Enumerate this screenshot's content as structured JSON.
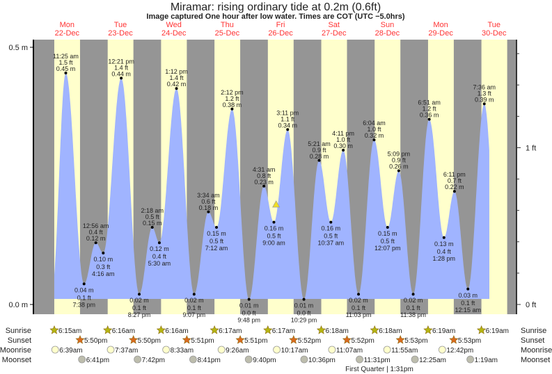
{
  "title": "Miramar: rising  ordinary tide at 0.2m (0.6ft)",
  "subtitle": "Image captured One hour after low water. Times are COT (UTC −5.0hrs)",
  "colors": {
    "night": "#959595",
    "day": "#ffffcc",
    "water": "#a0b4ff",
    "day_label": "#ff3333",
    "sunrise_star": "#b5b512",
    "sunset_star": "#d96a1e",
    "moonrise": "#ffffcc",
    "moonset": "#bdbdad",
    "current_marker": "#f0e020"
  },
  "days": [
    {
      "name": "Mon",
      "date": "22-Dec",
      "sunrise": "6:15am",
      "sunset": "5:50pm"
    },
    {
      "name": "Tue",
      "date": "23-Dec",
      "sunrise": "6:16am",
      "sunset": "5:50pm"
    },
    {
      "name": "Wed",
      "date": "24-Dec",
      "sunrise": "6:16am",
      "sunset": "5:51pm"
    },
    {
      "name": "Thu",
      "date": "25-Dec",
      "sunrise": "6:17am",
      "sunset": "5:51pm"
    },
    {
      "name": "Fri",
      "date": "26-Dec",
      "sunrise": "6:17am",
      "sunset": "5:52pm"
    },
    {
      "name": "Sat",
      "date": "27-Dec",
      "sunrise": "6:18am",
      "sunset": "5:52pm"
    },
    {
      "name": "Sun",
      "date": "28-Dec",
      "sunrise": "6:18am",
      "sunset": "5:53pm"
    },
    {
      "name": "Mon",
      "date": "29-Dec",
      "sunrise": "6:19am",
      "sunset": "5:53pm"
    },
    {
      "name": "Tue",
      "date": "30-Dec",
      "sunrise": "6:19am"
    }
  ],
  "chart_data": {
    "type": "area",
    "title": "Miramar: rising  ordinary tide at 0.2m (0.6ft)",
    "y_left": {
      "unit": "m",
      "ticks": [
        "0.0 m",
        "0.5 m"
      ],
      "range": [
        0,
        0.5
      ]
    },
    "y_right": {
      "unit": "ft",
      "ticks": [
        "0 ft",
        "1 ft"
      ]
    },
    "current_level_m": 0.2,
    "extremes": [
      {
        "day": 0,
        "time": "11:25 am",
        "type": "high",
        "m": "0.45 m",
        "ft": "1.5 ft"
      },
      {
        "day": 0,
        "time": "7:38 pm",
        "type": "low",
        "m": "0.04 m",
        "ft": "0.1 ft"
      },
      {
        "day": 1,
        "time": "12:56 am",
        "type": "high",
        "m": "0.12 m",
        "ft": "0.4 ft"
      },
      {
        "day": 1,
        "time": "4:16 am",
        "type": "low",
        "m": "0.10 m",
        "ft": "0.3 ft"
      },
      {
        "day": 1,
        "time": "12:21 pm",
        "type": "high",
        "m": "0.44 m",
        "ft": "1.4 ft"
      },
      {
        "day": 1,
        "time": "8:27 pm",
        "type": "low",
        "m": "0.02 m",
        "ft": "0.1 ft"
      },
      {
        "day": 2,
        "time": "2:18 am",
        "type": "high",
        "m": "0.15 m",
        "ft": "0.5 ft"
      },
      {
        "day": 2,
        "time": "5:30 am",
        "type": "low",
        "m": "0.12 m",
        "ft": "0.4 ft"
      },
      {
        "day": 2,
        "time": "1:12 pm",
        "type": "high",
        "m": "0.42 m",
        "ft": "1.4 ft"
      },
      {
        "day": 2,
        "time": "9:07 pm",
        "type": "low",
        "m": "0.02 m",
        "ft": "0.1 ft"
      },
      {
        "day": 3,
        "time": "3:34 am",
        "type": "high",
        "m": "0.18 m",
        "ft": "0.6 ft"
      },
      {
        "day": 3,
        "time": "7:12 am",
        "type": "low",
        "m": "0.15 m",
        "ft": "0.5 ft"
      },
      {
        "day": 3,
        "time": "2:12 pm",
        "type": "high",
        "m": "0.38 m",
        "ft": "1.2 ft"
      },
      {
        "day": 3,
        "time": "9:48 pm",
        "type": "low",
        "m": "0.01 m",
        "ft": "0.0 ft"
      },
      {
        "day": 4,
        "time": "4:31 am",
        "type": "high",
        "m": "0.23 m",
        "ft": "0.8 ft"
      },
      {
        "day": 4,
        "time": "9:00 am",
        "type": "low",
        "m": "0.16 m",
        "ft": "0.5 ft"
      },
      {
        "day": 4,
        "time": "3:11 pm",
        "type": "high",
        "m": "0.34 m",
        "ft": "1.1 ft"
      },
      {
        "day": 4,
        "time": "10:29 pm",
        "type": "low",
        "m": "0.01 m",
        "ft": "0.0 ft"
      },
      {
        "day": 5,
        "time": "5:21 am",
        "type": "high",
        "m": "0.28 m",
        "ft": "0.9 ft"
      },
      {
        "day": 5,
        "time": "10:37 am",
        "type": "low",
        "m": "0.16 m",
        "ft": "0.5 ft"
      },
      {
        "day": 5,
        "time": "4:11 pm",
        "type": "high",
        "m": "0.30 m",
        "ft": "1.0 ft"
      },
      {
        "day": 5,
        "time": "11:03 pm",
        "type": "low",
        "m": "0.02 m",
        "ft": "0.1 ft"
      },
      {
        "day": 6,
        "time": "6:04 am",
        "type": "high",
        "m": "0.32 m",
        "ft": "1.0 ft"
      },
      {
        "day": 6,
        "time": "12:07 pm",
        "type": "low",
        "m": "0.15 m",
        "ft": "0.5 ft"
      },
      {
        "day": 6,
        "time": "5:09 pm",
        "type": "high",
        "m": "0.26 m",
        "ft": "0.9 ft"
      },
      {
        "day": 6,
        "time": "11:38 pm",
        "type": "low",
        "m": "0.02 m",
        "ft": "0.1 ft"
      },
      {
        "day": 7,
        "time": "6:51 am",
        "type": "high",
        "m": "0.36 m",
        "ft": "1.2 ft"
      },
      {
        "day": 7,
        "time": "1:28 pm",
        "type": "low",
        "m": "0.13 m",
        "ft": "0.4 ft"
      },
      {
        "day": 7,
        "time": "6:11 pm",
        "type": "high",
        "m": "0.22 m",
        "ft": "0.7 ft"
      },
      {
        "day": 8,
        "time": "12:15 am",
        "type": "low",
        "m": "0.03 m",
        "ft": "0.1 ft"
      },
      {
        "day": 8,
        "time": "7:36 am",
        "type": "high",
        "m": "0.39 m",
        "ft": "1.3 ft"
      }
    ]
  },
  "rows": {
    "labels": {
      "sunrise": "Sunrise",
      "sunset": "Sunset",
      "moonrise": "Moonrise",
      "moonset": "Moonset"
    },
    "moonrise": [
      {
        "day": 0,
        "time": "6:39am"
      },
      {
        "day": 1,
        "time": "7:37am"
      },
      {
        "day": 2,
        "time": "8:33am"
      },
      {
        "day": 3,
        "time": "9:26am"
      },
      {
        "day": 4,
        "time": "10:17am"
      },
      {
        "day": 5,
        "time": "11:07am"
      },
      {
        "day": 6,
        "time": "11:55am"
      },
      {
        "day": 7,
        "time": "12:42pm"
      }
    ],
    "moonset": [
      {
        "day": 0,
        "time": "6:41pm"
      },
      {
        "day": 1,
        "time": "7:42pm"
      },
      {
        "day": 2,
        "time": "8:41pm"
      },
      {
        "day": 3,
        "time": "9:40pm"
      },
      {
        "day": 4,
        "time": "10:36pm"
      },
      {
        "day": 5,
        "time": "11:31pm"
      },
      {
        "day": 7,
        "time": "12:25am"
      },
      {
        "day": 8,
        "time": "1:19am"
      }
    ],
    "moon_phase": "First Quarter | 1:31pm"
  }
}
